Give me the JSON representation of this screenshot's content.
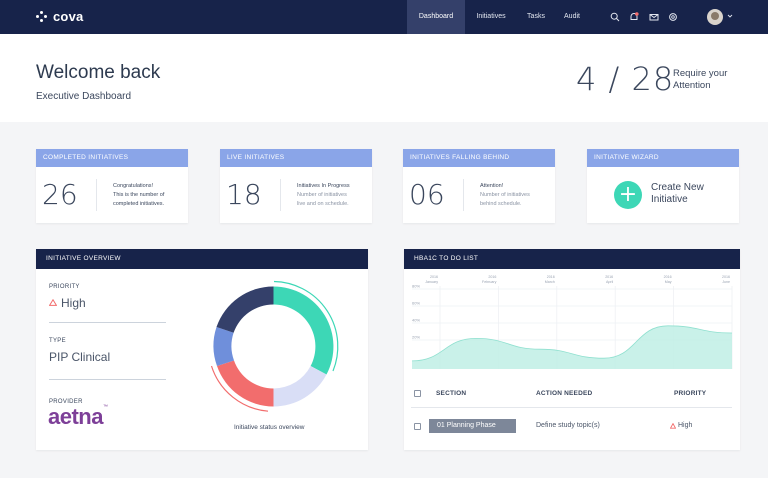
{
  "app": {
    "logo": "cova"
  },
  "nav": {
    "links": [
      "Dashboard",
      "Initiatives",
      "Tasks",
      "Audit"
    ]
  },
  "icons": [
    "search-icon",
    "notification-icon",
    "mail-icon",
    "settings-icon",
    "chevron-down-icon"
  ],
  "colors": {
    "navy": "#17234a",
    "card_header": "#8aa5e8",
    "teal": "#3dd7b6",
    "coral": "#f26d6d",
    "lavender": "#d9def6",
    "periwinkle": "#6f8fdb"
  },
  "hero": {
    "title": "Welcome back",
    "subtitle": "Executive Dashboard",
    "count": "4 / 28",
    "count_label": "Require your Attention"
  },
  "cards": [
    {
      "header": "COMPLETED INITIATIVES",
      "value": "26",
      "line1": "Congratulations!",
      "line2": "This is the number of",
      "line3": "completed initiatives."
    },
    {
      "header": "LIVE INITIATIVES",
      "value": "18",
      "line1": "Initiatives In Progress",
      "line2": "Number of initiatives",
      "line3": "live and on schedule."
    },
    {
      "header": "INITIATIVES FALLING BEHIND",
      "value": "06",
      "line1": "Attention!",
      "line2": "Number of initiatives",
      "line3": "behind schedule."
    },
    {
      "header": "INITIATIVE WIZARD",
      "action": "Create New Initiative"
    }
  ],
  "overview": {
    "header": "INITIATIVE OVERVIEW",
    "priority_label": "PRIORITY",
    "priority_value": "High",
    "type_label": "TYPE",
    "type_value": "PIP Clinical",
    "provider_label": "PROVIDER",
    "provider_logo": "aetna",
    "donut_caption": "Initiative status overview"
  },
  "todo": {
    "header": "HBA1C TO DO LIST",
    "columns": [
      "SECTION",
      "ACTION NEEDED",
      "PRIORITY"
    ],
    "rows": [
      {
        "section": "01 Planning Phase",
        "action": "Define study topic(s)",
        "priority": "High"
      }
    ]
  },
  "chart_data": {
    "type": "area",
    "y_ticks": [
      "80%",
      "60%",
      "40%",
      "20%"
    ],
    "x_labels": [
      {
        "year": "2016",
        "month": "January"
      },
      {
        "year": "2016",
        "month": "February"
      },
      {
        "year": "2016",
        "month": "March"
      },
      {
        "year": "2016",
        "month": "April"
      },
      {
        "year": "2016",
        "month": "May"
      },
      {
        "year": "2016",
        "month": "June"
      }
    ],
    "values": [
      9,
      34,
      22,
      12,
      48,
      40
    ]
  }
}
